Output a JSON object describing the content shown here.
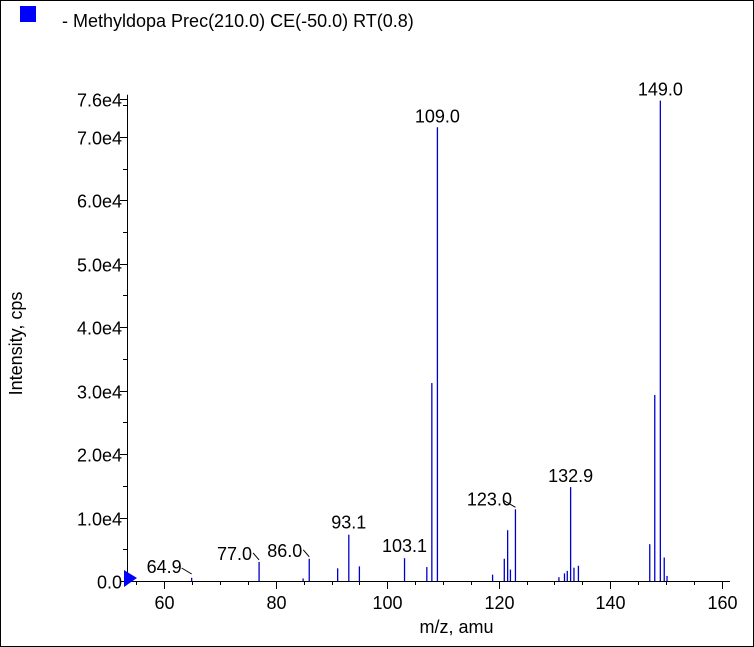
{
  "chart_data": {
    "type": "bar",
    "legend": {
      "text": "- Methyldopa Prec(210.0) CE(-50.0) RT(0.8)",
      "swatch_color": "#0000ff",
      "placement": "top-left"
    },
    "xlabel": "m/z, amu",
    "ylabel": "Intensity, cps",
    "xlim": [
      53.3,
      161.5
    ],
    "ylim": [
      0,
      78000
    ],
    "x_ticks": [
      {
        "value": 60,
        "label": "60"
      },
      {
        "value": 80,
        "label": "80"
      },
      {
        "value": 100,
        "label": "100"
      },
      {
        "value": 120,
        "label": "120"
      },
      {
        "value": 140,
        "label": "140"
      },
      {
        "value": 160,
        "label": "160"
      }
    ],
    "y_ticks": [
      {
        "value": 0,
        "label": "0.0"
      },
      {
        "value": 10000,
        "label": "1.0e4"
      },
      {
        "value": 20000,
        "label": "2.0e4"
      },
      {
        "value": 30000,
        "label": "3.0e4"
      },
      {
        "value": 40000,
        "label": "4.0e4"
      },
      {
        "value": 50000,
        "label": "5.0e4"
      },
      {
        "value": 60000,
        "label": "6.0e4"
      },
      {
        "value": 70000,
        "label": "7.0e4"
      },
      {
        "value": 76000,
        "label": "7.6e4"
      }
    ],
    "grid": false,
    "line_color": "#0000cc",
    "precursor_marker": {
      "value": 0,
      "color": "#0000ff"
    },
    "peaks": [
      {
        "x": 64.9,
        "y": 500
      },
      {
        "x": 77.0,
        "y": 3000
      },
      {
        "x": 84.9,
        "y": 400
      },
      {
        "x": 86.0,
        "y": 3500
      },
      {
        "x": 91.1,
        "y": 2000
      },
      {
        "x": 93.1,
        "y": 7300
      },
      {
        "x": 95.0,
        "y": 2300
      },
      {
        "x": 103.1,
        "y": 3600
      },
      {
        "x": 107.1,
        "y": 2200
      },
      {
        "x": 108.0,
        "y": 31200
      },
      {
        "x": 109.0,
        "y": 71500
      },
      {
        "x": 118.9,
        "y": 1000
      },
      {
        "x": 121.0,
        "y": 3500
      },
      {
        "x": 121.6,
        "y": 8000
      },
      {
        "x": 122.1,
        "y": 1800
      },
      {
        "x": 123.0,
        "y": 11300
      },
      {
        "x": 130.8,
        "y": 600
      },
      {
        "x": 131.8,
        "y": 1200
      },
      {
        "x": 132.3,
        "y": 1600
      },
      {
        "x": 132.9,
        "y": 14800
      },
      {
        "x": 133.5,
        "y": 2100
      },
      {
        "x": 134.3,
        "y": 2400
      },
      {
        "x": 147.1,
        "y": 5800
      },
      {
        "x": 148.0,
        "y": 29300
      },
      {
        "x": 149.0,
        "y": 75700
      },
      {
        "x": 149.7,
        "y": 3700
      },
      {
        "x": 150.2,
        "y": 800
      }
    ],
    "annotations": [
      {
        "x": 64.9,
        "y": 500,
        "text": "64.9"
      },
      {
        "x": 77.0,
        "y": 3000,
        "text": "77.0"
      },
      {
        "x": 86.0,
        "y": 3500,
        "text": "86.0"
      },
      {
        "x": 93.1,
        "y": 7300,
        "text": "93.1"
      },
      {
        "x": 103.1,
        "y": 3600,
        "text": "103.1"
      },
      {
        "x": 109.0,
        "y": 71500,
        "text": "109.0"
      },
      {
        "x": 123.0,
        "y": 11300,
        "text": "123.0"
      },
      {
        "x": 132.9,
        "y": 14800,
        "text": "132.9"
      },
      {
        "x": 149.0,
        "y": 75700,
        "text": "149.0"
      }
    ]
  }
}
